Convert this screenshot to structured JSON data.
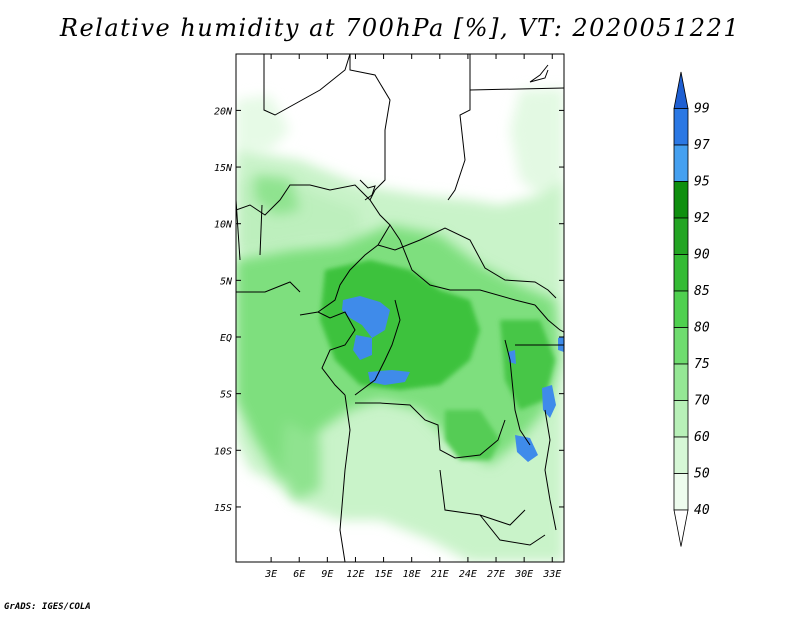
{
  "title": "Relative humidity at 700hPa [%], VT: 2020051221",
  "credit": "GrADS: IGES/COLA",
  "map": {
    "lon_range": [
      0,
      35
    ],
    "lat_range": [
      -20,
      25
    ],
    "lon_ticks": [
      "3E",
      "6E",
      "9E",
      "12E",
      "15E",
      "18E",
      "21E",
      "24E",
      "27E",
      "30E",
      "33E"
    ],
    "lon_tick_values": [
      3,
      6,
      9,
      12,
      15,
      18,
      21,
      24,
      27,
      30,
      33
    ],
    "lat_ticks": [
      "20N",
      "15N",
      "10N",
      "5N",
      "EQ",
      "5S",
      "10S",
      "15S"
    ],
    "lat_tick_values": [
      20,
      15,
      10,
      5,
      0,
      -5,
      -10,
      -15
    ]
  },
  "colorbar": {
    "labels": [
      "99",
      "97",
      "95",
      "92",
      "90",
      "85",
      "80",
      "75",
      "70",
      "60",
      "50",
      "40"
    ],
    "colors": [
      "#1e5fd2",
      "#2b78e4",
      "#45a0f0",
      "#0f8f0f",
      "#23a523",
      "#34bb34",
      "#4fd04f",
      "#6fdc6f",
      "#95e795",
      "#b8f0b8",
      "#d6f7d6",
      "#eefcee"
    ]
  },
  "fields": {
    "land": "#ffffff",
    "humid_light": "#c9f3c9",
    "humid_mid": "#7edf7e",
    "humid_dark": "#3ec23e",
    "humid_blue": "#3f8bea"
  }
}
